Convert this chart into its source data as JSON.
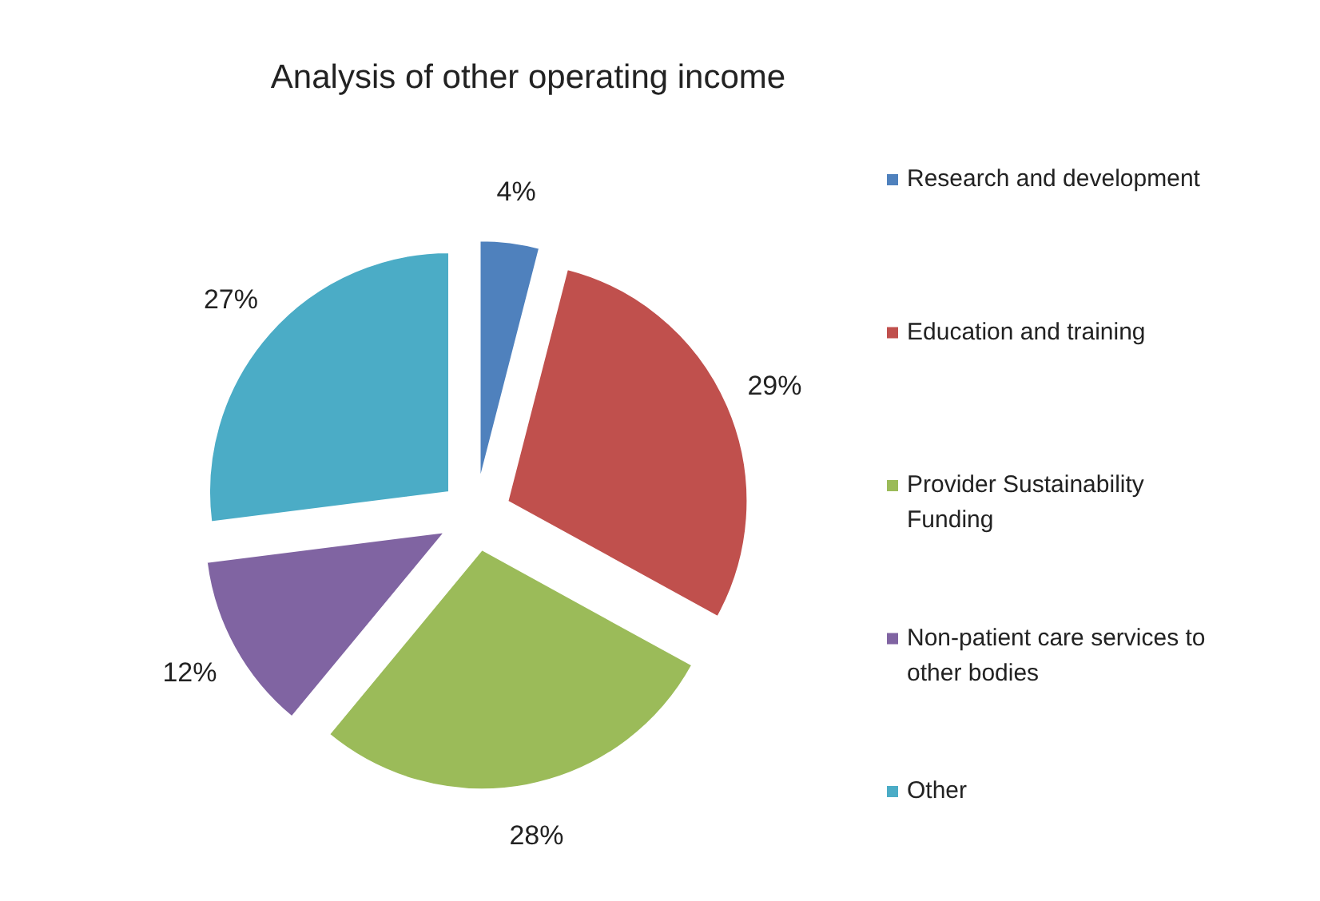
{
  "chart_data": {
    "type": "pie",
    "title": "Analysis of other operating income",
    "categories": [
      "Research and development",
      "Education and training",
      "Provider Sustainability Funding",
      "Non-patient care services to other bodies",
      "Other"
    ],
    "values": [
      4,
      29,
      28,
      12,
      27
    ],
    "value_labels": [
      "4%",
      "29%",
      "28%",
      "12%",
      "27%"
    ],
    "colors": [
      "#4f81bd",
      "#c0504d",
      "#9bbb59",
      "#8064a2",
      "#4bacc6"
    ],
    "legend": "right"
  }
}
